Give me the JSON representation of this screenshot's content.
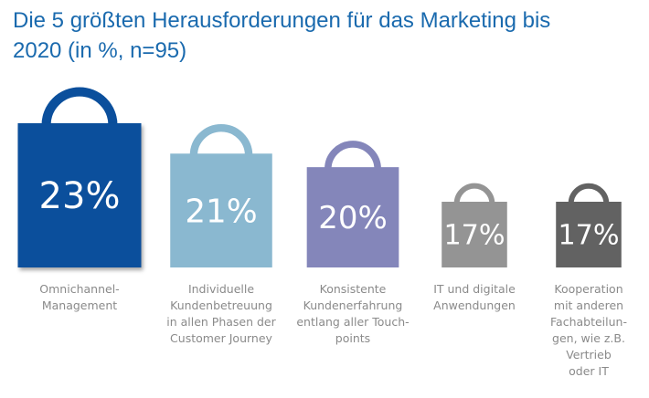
{
  "title_line1": "Die 5 größten Herausforderungen für das Marketing bis",
  "title_line2": "2020 (in %, n=95)",
  "chart_data": {
    "type": "bar",
    "title": "Die 5 größten Herausforderungen für das Marketing bis 2020 (in %, n=95)",
    "xlabel": "",
    "ylabel": "",
    "unit": "%",
    "categories": [
      "Omnichannel-Management",
      "Individuelle Kundenbetreuung in allen Phasen der Customer Journey",
      "Konsistente Kundenerfahrung entlang aller Touch-points",
      "IT und digitale Anwendungen",
      "Kooperation mit anderen Fachabteilun-gen, wie z.B. Vertrieb oder IT"
    ],
    "values": [
      23,
      21,
      20,
      17,
      17
    ],
    "value_labels": [
      "23%",
      "21%",
      "20%",
      "17%",
      "17%"
    ],
    "colors": [
      "#0b4f9c",
      "#8ab8d0",
      "#8486ba",
      "#949494",
      "#626262"
    ],
    "label_lines": [
      [
        "Omnichannel-",
        "Management"
      ],
      [
        "Individuelle",
        "Kundenbetreuung",
        "in allen Phasen der",
        "Customer Journey"
      ],
      [
        "Konsistente",
        "Kundenerfahrung",
        "entlang aller Touch-",
        "points"
      ],
      [
        "IT und digitale",
        "Anwendungen"
      ],
      [
        "Kooperation",
        "mit anderen",
        "Fachabteilun-",
        "gen, wie z.B.",
        "Vertrieb",
        "oder IT"
      ]
    ],
    "grid": false,
    "legend": "none"
  }
}
